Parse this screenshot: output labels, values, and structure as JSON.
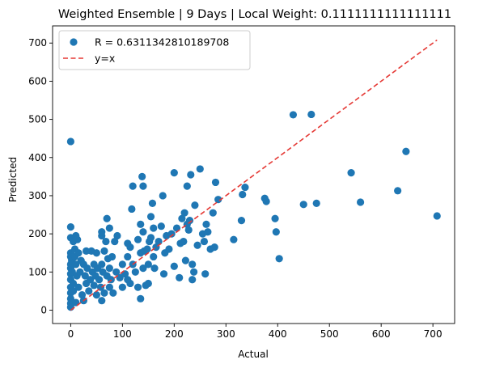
{
  "chart_data": {
    "type": "scatter",
    "title": "Weighted Ensemble | 9 Days | Local Weight: 0.1111111111111111",
    "xlabel": "Actual",
    "ylabel": "Predicted",
    "xlim": [
      -35,
      742
    ],
    "ylim": [
      -35,
      745
    ],
    "xticks": [
      0,
      100,
      200,
      300,
      400,
      500,
      600,
      700
    ],
    "yticks": [
      0,
      100,
      200,
      300,
      400,
      500,
      600,
      700
    ],
    "grid": false,
    "legend_position": "top-left",
    "colors": {
      "points": "#1f77b4",
      "reference_line": "#e53935"
    },
    "series": [
      {
        "name": "R = 0.6311342810189708",
        "marker": "circle",
        "points": [
          [
            0,
            442
          ],
          [
            0,
            218
          ],
          [
            0,
            190
          ],
          [
            0,
            150
          ],
          [
            0,
            140
          ],
          [
            0,
            120
          ],
          [
            0,
            110
          ],
          [
            0,
            95
          ],
          [
            0,
            80
          ],
          [
            0,
            60
          ],
          [
            0,
            45
          ],
          [
            0,
            30
          ],
          [
            0,
            18
          ],
          [
            0,
            8
          ],
          [
            2,
            130
          ],
          [
            3,
            100
          ],
          [
            5,
            180
          ],
          [
            5,
            70
          ],
          [
            5,
            50
          ],
          [
            8,
            160
          ],
          [
            8,
            140
          ],
          [
            10,
            195
          ],
          [
            10,
            120
          ],
          [
            10,
            20
          ],
          [
            12,
            90
          ],
          [
            13,
            185
          ],
          [
            15,
            150
          ],
          [
            15,
            60
          ],
          [
            18,
            100
          ],
          [
            20,
            130
          ],
          [
            22,
            40
          ],
          [
            25,
            120
          ],
          [
            25,
            25
          ],
          [
            28,
            90
          ],
          [
            30,
            155
          ],
          [
            30,
            70
          ],
          [
            32,
            110
          ],
          [
            35,
            50
          ],
          [
            38,
            80
          ],
          [
            40,
            155
          ],
          [
            42,
            100
          ],
          [
            45,
            120
          ],
          [
            45,
            65
          ],
          [
            48,
            90
          ],
          [
            50,
            150
          ],
          [
            50,
            40
          ],
          [
            52,
            110
          ],
          [
            55,
            80
          ],
          [
            58,
            60
          ],
          [
            60,
            205
          ],
          [
            60,
            195
          ],
          [
            60,
            120
          ],
          [
            60,
            25
          ],
          [
            62,
            100
          ],
          [
            65,
            155
          ],
          [
            65,
            45
          ],
          [
            68,
            180
          ],
          [
            70,
            240
          ],
          [
            70,
            90
          ],
          [
            72,
            135
          ],
          [
            75,
            215
          ],
          [
            75,
            110
          ],
          [
            75,
            60
          ],
          [
            78,
            80
          ],
          [
            80,
            140
          ],
          [
            82,
            45
          ],
          [
            85,
            180
          ],
          [
            88,
            100
          ],
          [
            90,
            195
          ],
          [
            95,
            85
          ],
          [
            100,
            60
          ],
          [
            100,
            120
          ],
          [
            105,
            95
          ],
          [
            110,
            140
          ],
          [
            110,
            175
          ],
          [
            110,
            80
          ],
          [
            115,
            165
          ],
          [
            115,
            70
          ],
          [
            118,
            265
          ],
          [
            120,
            325
          ],
          [
            120,
            120
          ],
          [
            125,
            100
          ],
          [
            130,
            185
          ],
          [
            130,
            60
          ],
          [
            135,
            225
          ],
          [
            135,
            150
          ],
          [
            135,
            30
          ],
          [
            138,
            350
          ],
          [
            140,
            325
          ],
          [
            140,
            205
          ],
          [
            140,
            110
          ],
          [
            142,
            155
          ],
          [
            145,
            65
          ],
          [
            148,
            160
          ],
          [
            150,
            120
          ],
          [
            150,
            70
          ],
          [
            152,
            180
          ],
          [
            155,
            245
          ],
          [
            155,
            190
          ],
          [
            158,
            280
          ],
          [
            160,
            215
          ],
          [
            160,
            140
          ],
          [
            162,
            110
          ],
          [
            165,
            165
          ],
          [
            170,
            180
          ],
          [
            175,
            220
          ],
          [
            178,
            300
          ],
          [
            180,
            95
          ],
          [
            182,
            150
          ],
          [
            185,
            195
          ],
          [
            190,
            160
          ],
          [
            195,
            200
          ],
          [
            200,
            360
          ],
          [
            200,
            115
          ],
          [
            205,
            215
          ],
          [
            210,
            85
          ],
          [
            212,
            175
          ],
          [
            215,
            240
          ],
          [
            218,
            180
          ],
          [
            220,
            255
          ],
          [
            222,
            130
          ],
          [
            225,
            325
          ],
          [
            225,
            225
          ],
          [
            228,
            210
          ],
          [
            230,
            235
          ],
          [
            232,
            355
          ],
          [
            235,
            120
          ],
          [
            235,
            80
          ],
          [
            238,
            100
          ],
          [
            240,
            275
          ],
          [
            245,
            170
          ],
          [
            250,
            370
          ],
          [
            255,
            200
          ],
          [
            258,
            180
          ],
          [
            260,
            95
          ],
          [
            262,
            225
          ],
          [
            265,
            205
          ],
          [
            270,
            160
          ],
          [
            275,
            255
          ],
          [
            278,
            165
          ],
          [
            280,
            335
          ],
          [
            285,
            290
          ],
          [
            315,
            185
          ],
          [
            330,
            235
          ],
          [
            332,
            303
          ],
          [
            337,
            322
          ],
          [
            375,
            293
          ],
          [
            378,
            285
          ],
          [
            395,
            240
          ],
          [
            397,
            205
          ],
          [
            403,
            135
          ],
          [
            430,
            512
          ],
          [
            450,
            277
          ],
          [
            465,
            513
          ],
          [
            475,
            280
          ],
          [
            542,
            360
          ],
          [
            560,
            283
          ],
          [
            632,
            313
          ],
          [
            648,
            416
          ],
          [
            708,
            247
          ]
        ]
      },
      {
        "name": "y=x",
        "line": "dashed",
        "x": [
          0,
          708
        ],
        "y": [
          0,
          708
        ]
      }
    ]
  }
}
